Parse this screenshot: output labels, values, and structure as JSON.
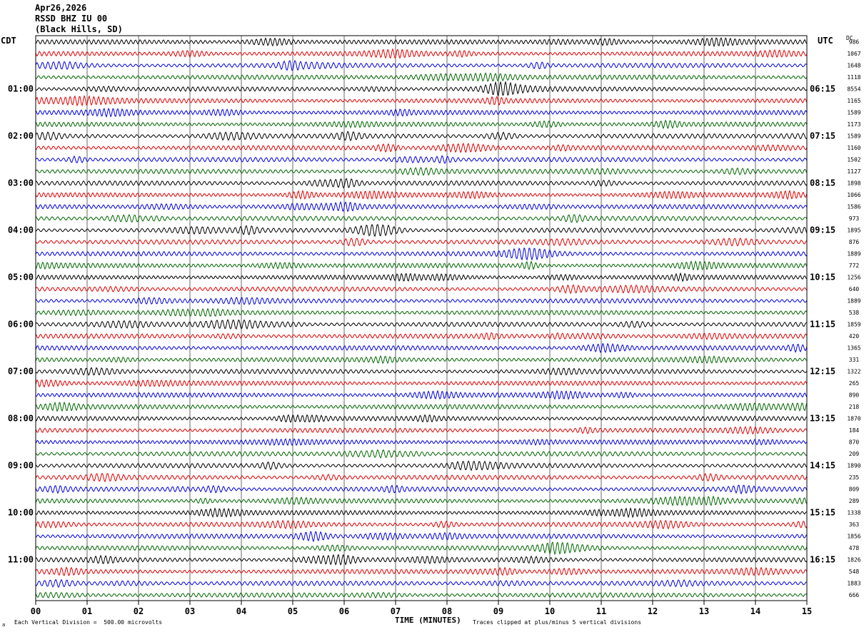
{
  "header": {
    "date": "Apr26,2026",
    "station": "RSSD BHZ IU 00",
    "location": "(Black Hills, SD)"
  },
  "left_axis_label": "CDT",
  "right_axis_label": "UTC",
  "dc_label": "DC",
  "footer": {
    "scale_note": "Each Vertical Division =  500.00 microvolts",
    "clip_note": "Traces clipped at plus/minus 5 vertical divisions",
    "corner_mark": "a"
  },
  "chart_data": {
    "type": "line",
    "title": "",
    "xlabel": "TIME (MINUTES)",
    "xlim": [
      0,
      15
    ],
    "x_ticks": [
      "00",
      "01",
      "02",
      "03",
      "04",
      "05",
      "06",
      "07",
      "08",
      "09",
      "10",
      "11",
      "12",
      "13",
      "14",
      "15"
    ],
    "rows_total": 48,
    "row_minutes": 15,
    "trace_colors": [
      "#000000",
      "#dd0000",
      "#0000dd",
      "#006600"
    ],
    "cdt_labels": [
      "01:00",
      "02:00",
      "03:00",
      "04:00",
      "05:00",
      "06:00",
      "07:00",
      "08:00",
      "09:00",
      "10:00",
      "11:00"
    ],
    "utc_labels": [
      "06:15",
      "07:15",
      "08:15",
      "09:15",
      "10:15",
      "11:15",
      "12:15",
      "13:15",
      "14:15",
      "15:15",
      "16:15"
    ],
    "hour_label_first_row": 4,
    "hour_label_row_step": 4,
    "dc_offsets": [
      "986",
      "1067",
      "1648",
      "1118",
      "8554",
      "1165",
      "1589",
      "1173",
      "1589",
      "1160",
      "1502",
      "1127",
      "1898",
      "1066",
      "1586",
      "973",
      "1895",
      "876",
      "1889",
      "772",
      "1256",
      "640",
      "1889",
      "538",
      "1859",
      "420",
      "1365",
      "331",
      "1322",
      "265",
      "890",
      "218",
      "1870",
      "184",
      "870",
      "209",
      "1890",
      "235",
      "809",
      "289",
      "1338",
      "363",
      "1856",
      "478",
      "1826",
      "548",
      "1883",
      "666"
    ]
  }
}
